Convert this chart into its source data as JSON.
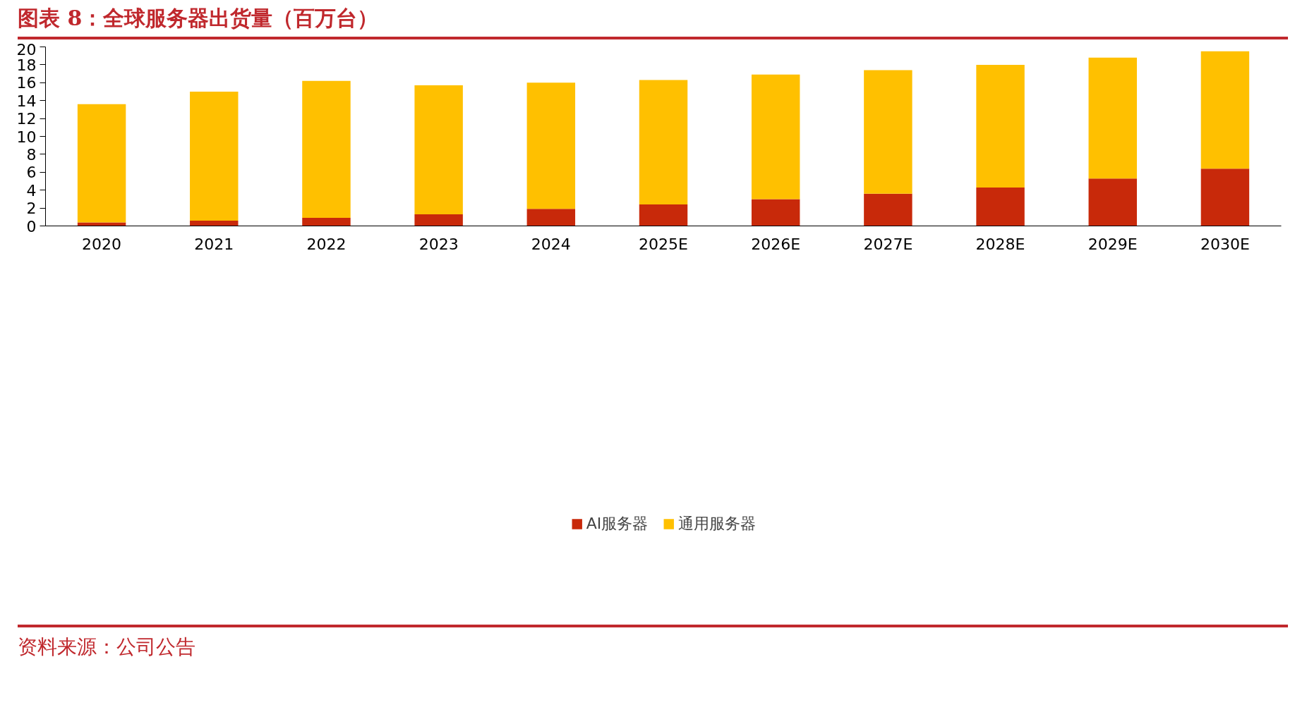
{
  "chart_data": {
    "type": "bar",
    "title": "图表 8：全球服务器出货量（百万台）",
    "categories": [
      "2020",
      "2021",
      "2022",
      "2023",
      "2024",
      "2025E",
      "2026E",
      "2027E",
      "2028E",
      "2029E",
      "2030E"
    ],
    "stacked": true,
    "series": [
      {
        "name": "AI服务器",
        "color": "#c8290a",
        "values": [
          0.4,
          0.6,
          0.9,
          1.3,
          1.9,
          2.4,
          3.0,
          3.6,
          4.3,
          5.3,
          6.4
        ]
      },
      {
        "name": "通用服务器",
        "color": "#ffc000",
        "values": [
          13.2,
          14.4,
          15.3,
          14.4,
          14.1,
          13.9,
          13.9,
          13.8,
          13.7,
          13.5,
          13.1
        ]
      }
    ],
    "ylim": [
      0,
      20
    ],
    "yticks": [
      0,
      2,
      4,
      6,
      8,
      10,
      12,
      14,
      16,
      18,
      20
    ],
    "grid": false,
    "legend": "bottom",
    "annotations": [
      "资料来源：公司公告"
    ]
  }
}
